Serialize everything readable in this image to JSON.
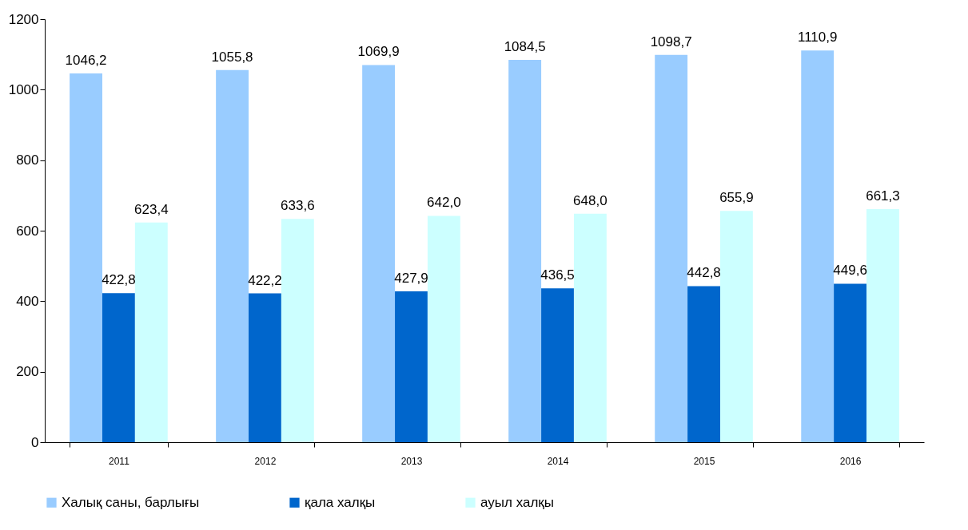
{
  "chart_data": {
    "type": "bar",
    "categories": [
      "2011",
      "2012",
      "2013",
      "2014",
      "2015",
      "2016"
    ],
    "series": [
      {
        "name": "Халық саны, барлығы",
        "color": "#99ccff",
        "values": [
          1046.2,
          1055.8,
          1069.9,
          1084.5,
          1098.7,
          1110.9
        ],
        "value_labels": [
          "1046,2",
          "1055,8",
          "1069,9",
          "1084,5",
          "1098,7",
          "1110,9"
        ]
      },
      {
        "name": "қала халқы",
        "color": "#0066cc",
        "values": [
          422.8,
          422.2,
          427.9,
          436.5,
          442.8,
          449.6
        ],
        "value_labels": [
          "422,8",
          "422,2",
          "427,9",
          "436,5",
          "442,8",
          "449,6"
        ]
      },
      {
        "name": "ауыл халқы",
        "color": "#ccffff",
        "values": [
          623.4,
          633.6,
          642.0,
          648.0,
          655.9,
          661.3
        ],
        "value_labels": [
          "623,4",
          "633,6",
          "642,0",
          "648,0",
          "655,9",
          "661,3"
        ]
      }
    ],
    "ylim": [
      0,
      1200
    ],
    "yticks": [
      0,
      200,
      400,
      600,
      800,
      1000,
      1200
    ],
    "legend": "bottom"
  }
}
